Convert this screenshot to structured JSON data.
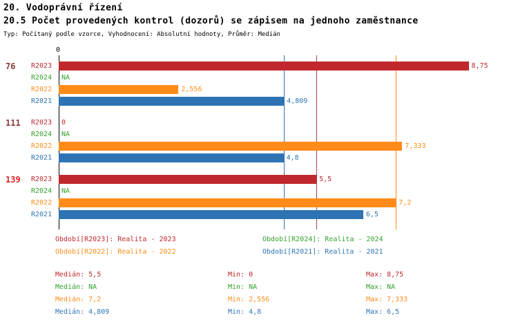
{
  "page": {
    "title_line1": "20. Vodoprávní řízení",
    "title_line2": "20.5 Počet provedených kontrol (dozorů) se zápisem na jednoho zaměstnance",
    "meta": "Typ: Počítaný podle vzorce, Vyhodnocení: Absolutní hodnoty, Průměr: Medián"
  },
  "colors": {
    "series": {
      "R2023": "#C0282D",
      "R2024": "#33A02C",
      "R2022": "#FF8C1A",
      "R2021": "#2E74B5"
    },
    "group_label_normal": "#8B3A3A",
    "group_label_highlight": "#E01F26",
    "axis": "#000000"
  },
  "chart_data": {
    "type": "bar",
    "orientation": "horizontal",
    "title": "20.5 Počet provedených kontrol (dozorů) se zápisem na jednoho zaměstnance",
    "x_axis": {
      "min": 0,
      "max": 9.7,
      "min_label": "0",
      "grid": false
    },
    "series_order": [
      "R2023",
      "R2024",
      "R2022",
      "R2021"
    ],
    "groups": [
      {
        "label": "76",
        "highlighted": false,
        "bars": [
          {
            "series": "R2023",
            "value": 8.75,
            "display": "8,75"
          },
          {
            "series": "R2024",
            "value": null,
            "display": "NA"
          },
          {
            "series": "R2022",
            "value": 2.556,
            "display": "2,556"
          },
          {
            "series": "R2021",
            "value": 4.809,
            "display": "4,809"
          }
        ]
      },
      {
        "label": "111",
        "highlighted": false,
        "bars": [
          {
            "series": "R2023",
            "value": 0,
            "display": "0"
          },
          {
            "series": "R2024",
            "value": null,
            "display": "NA"
          },
          {
            "series": "R2022",
            "value": 7.333,
            "display": "7,333"
          },
          {
            "series": "R2021",
            "value": 4.8,
            "display": "4,8"
          }
        ]
      },
      {
        "label": "139",
        "highlighted": true,
        "bars": [
          {
            "series": "R2023",
            "value": 5.5,
            "display": "5,5"
          },
          {
            "series": "R2024",
            "value": null,
            "display": "NA"
          },
          {
            "series": "R2022",
            "value": 7.2,
            "display": "7,2"
          },
          {
            "series": "R2021",
            "value": 6.5,
            "display": "6,5"
          }
        ]
      }
    ],
    "median_lines": [
      {
        "series": "R2023",
        "value": 5.5,
        "color": "#A04545"
      },
      {
        "series": "R2022",
        "value": 7.2,
        "color": "#FF8C1A"
      },
      {
        "series": "R2021",
        "value": 4.809,
        "color": "#2E74B5"
      }
    ],
    "legend": [
      {
        "series": "R2023",
        "text": "Období[R2023]: Realita - 2023"
      },
      {
        "series": "R2024",
        "text": "Období[R2024]: Realita - 2024"
      },
      {
        "series": "R2022",
        "text": "Období[R2022]: Realita - 2022"
      },
      {
        "series": "R2021",
        "text": "Období[R2021]: Realita - 2021"
      }
    ],
    "stats": [
      {
        "series": "R2023",
        "median": "Medián: 5,5",
        "min": "Min: 0",
        "max": "Max: 8,75"
      },
      {
        "series": "R2024",
        "median": "Medián: NA",
        "min": "Min: NA",
        "max": "Max: NA"
      },
      {
        "series": "R2022",
        "median": "Medián: 7,2",
        "min": "Min: 2,556",
        "max": "Max: 7,333"
      },
      {
        "series": "R2021",
        "median": "Medián: 4,809",
        "min": "Min: 4,8",
        "max": "Max: 6,5"
      }
    ]
  }
}
